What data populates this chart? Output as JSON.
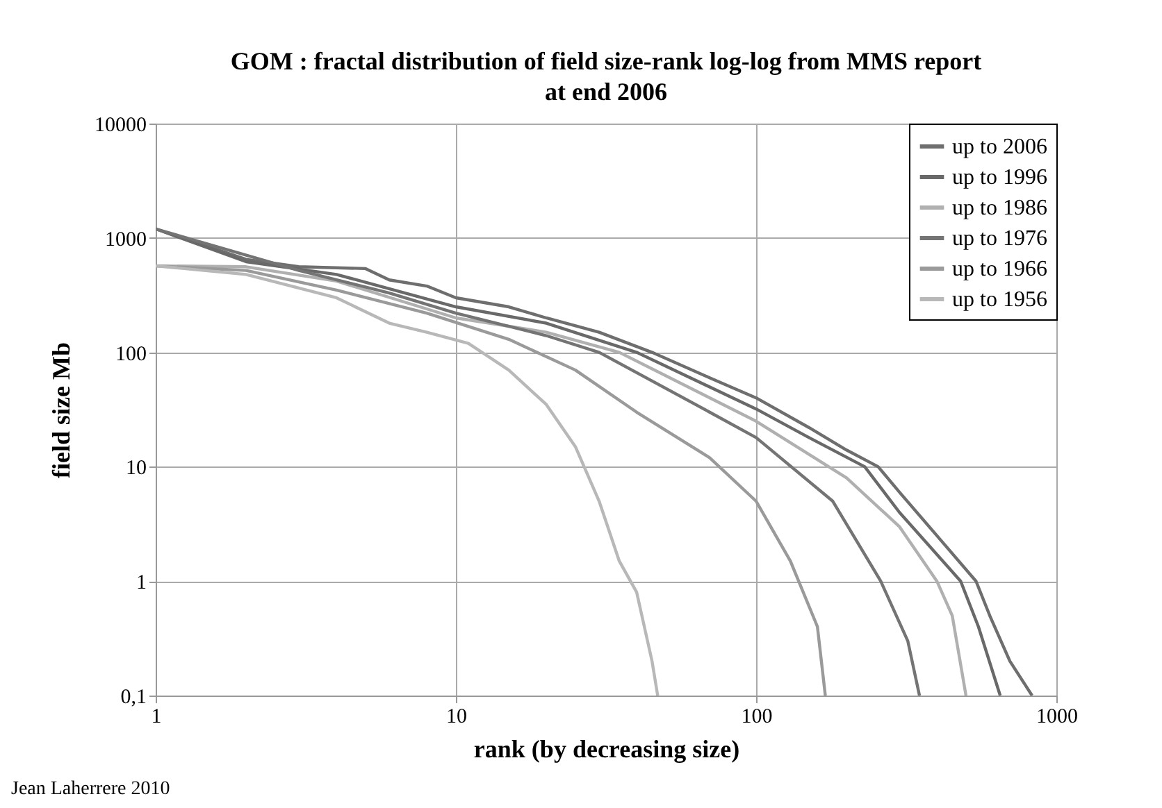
{
  "chart_data": {
    "type": "line",
    "title": "GOM : fractal distribution of field size-rank log-log  from MMS report at end 2006",
    "xlabel": "rank (by decreasing size)",
    "ylabel": "field size Mb",
    "annotations": [
      "Jean Laherrere 2010"
    ],
    "log": "xy",
    "grid": true,
    "legend": "top right",
    "xlim": [
      1,
      1000
    ],
    "xticks": [
      1,
      10,
      100,
      1000
    ],
    "ylim": [
      0.1,
      10000
    ],
    "yticks": [
      {
        "value": 0.1,
        "label": "0,1"
      },
      1,
      10,
      100,
      1000,
      10000
    ],
    "series": [
      {
        "name": "up to 2006",
        "color": "#6e6e6e",
        "x": [
          1,
          2,
          3,
          5,
          6,
          8,
          10,
          15,
          20,
          30,
          45,
          70,
          100,
          150,
          200,
          255,
          300,
          400,
          540,
          600,
          700,
          830
        ],
        "values": [
          1200,
          650,
          560,
          540,
          430,
          380,
          300,
          250,
          200,
          150,
          100,
          60,
          40,
          22,
          14,
          10,
          6,
          2.5,
          1,
          0.5,
          0.2,
          0.1
        ]
      },
      {
        "name": "up to 1996",
        "color": "#696969",
        "x": [
          1,
          2,
          4,
          10,
          20,
          40,
          100,
          150,
          230,
          300,
          480,
          550,
          650
        ],
        "values": [
          1200,
          620,
          480,
          250,
          180,
          100,
          32,
          18,
          10,
          4,
          1,
          0.4,
          0.1
        ]
      },
      {
        "name": "up to 1986",
        "color": "#b0b0b0",
        "x": [
          1,
          2,
          4,
          10,
          20,
          35,
          100,
          200,
          300,
          400,
          450,
          500
        ],
        "values": [
          570,
          560,
          420,
          200,
          150,
          100,
          25,
          8,
          3,
          1,
          0.5,
          0.1
        ]
      },
      {
        "name": "up to 1976",
        "color": "#747474",
        "x": [
          1,
          3,
          6,
          10,
          20,
          30,
          70,
          100,
          180,
          260,
          320,
          350
        ],
        "values": [
          1200,
          520,
          330,
          220,
          140,
          100,
          30,
          18,
          5,
          1,
          0.3,
          0.1
        ]
      },
      {
        "name": "up to 1966",
        "color": "#9a9a9a",
        "x": [
          1,
          2,
          4,
          8,
          15,
          25,
          40,
          70,
          100,
          130,
          160,
          170
        ],
        "values": [
          570,
          520,
          350,
          220,
          130,
          70,
          30,
          12,
          5,
          1.5,
          0.4,
          0.1
        ]
      },
      {
        "name": "up to 1956",
        "color": "#b8b8b8",
        "x": [
          1,
          2,
          4,
          6,
          8,
          11,
          15,
          20,
          25,
          30,
          35,
          40,
          45,
          47
        ],
        "values": [
          570,
          480,
          300,
          180,
          150,
          120,
          70,
          35,
          15,
          5,
          1.5,
          0.8,
          0.2,
          0.1
        ]
      }
    ]
  }
}
